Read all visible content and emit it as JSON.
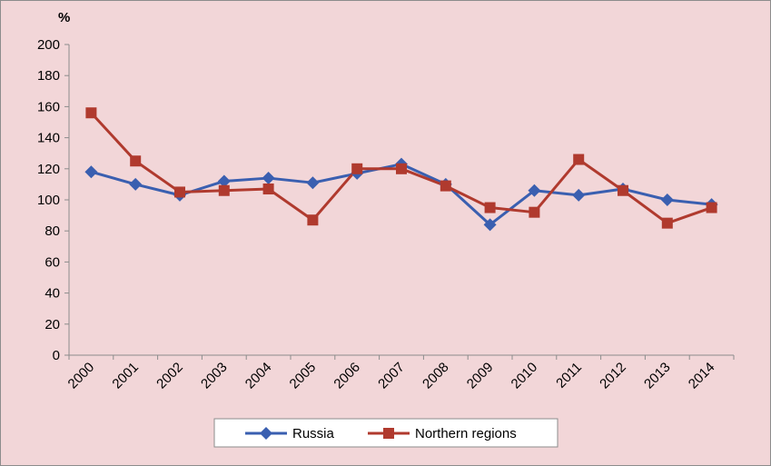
{
  "chart_data": {
    "type": "line",
    "y_unit_label": "%",
    "ylim": [
      0,
      200
    ],
    "y_ticks": [
      0,
      20,
      40,
      60,
      80,
      100,
      120,
      140,
      160,
      180,
      200
    ],
    "categories": [
      "2000",
      "2001",
      "2002",
      "2003",
      "2004",
      "2005",
      "2006",
      "2007",
      "2008",
      "2009",
      "2010",
      "2011",
      "2012",
      "2013",
      "2014"
    ],
    "grid": false,
    "legend_position": "bottom",
    "series": [
      {
        "name": "Russia",
        "color": "#3a5fb0",
        "marker": "diamond",
        "values": [
          118,
          110,
          103,
          112,
          114,
          111,
          117,
          123,
          110,
          84,
          106,
          103,
          107,
          100,
          97
        ]
      },
      {
        "name": "Northern regions",
        "color": "#b03a2e",
        "marker": "square",
        "values": [
          156,
          125,
          105,
          106,
          107,
          87,
          120,
          120,
          109,
          95,
          92,
          126,
          106,
          85,
          95
        ]
      }
    ]
  }
}
